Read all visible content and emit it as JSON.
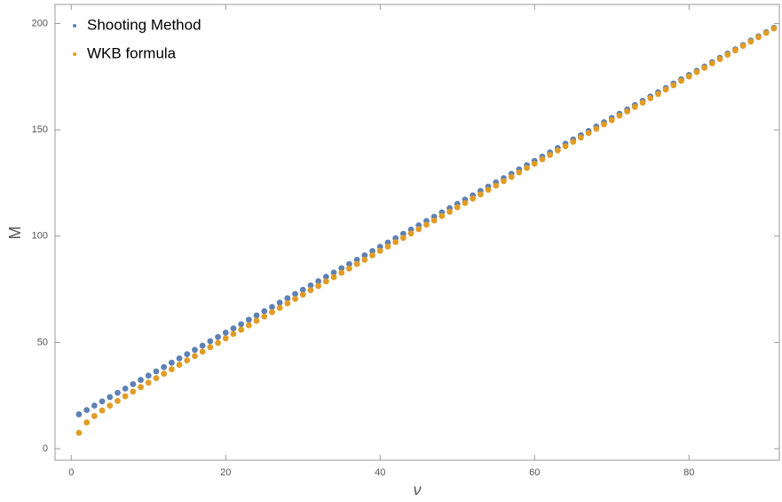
{
  "chart_data": {
    "type": "scatter",
    "x_label": "ν",
    "y_label": "M",
    "x": [
      1,
      2,
      3,
      4,
      5,
      6,
      7,
      8,
      9,
      10,
      11,
      12,
      13,
      14,
      15,
      16,
      17,
      18,
      19,
      20,
      21,
      22,
      23,
      24,
      25,
      26,
      27,
      28,
      29,
      30,
      31,
      32,
      33,
      34,
      35,
      36,
      37,
      38,
      39,
      40,
      41,
      42,
      43,
      44,
      45,
      46,
      47,
      48,
      49,
      50,
      51,
      52,
      53,
      54,
      55,
      56,
      57,
      58,
      59,
      60,
      61,
      62,
      63,
      64,
      65,
      66,
      67,
      68,
      69,
      70,
      71,
      72,
      73,
      74,
      75,
      76,
      77,
      78,
      79,
      80,
      81,
      82,
      83,
      84,
      85,
      86,
      87,
      88,
      89,
      90,
      91
    ],
    "series": [
      {
        "name": "Shooting Method",
        "color": "#5e81b5",
        "values": [
          16.2,
          18.2,
          20.3,
          22.3,
          24.3,
          26.3,
          28.3,
          30.4,
          32.4,
          34.4,
          36.4,
          38.4,
          40.5,
          42.5,
          44.5,
          46.5,
          48.5,
          50.6,
          52.6,
          54.6,
          56.6,
          58.6,
          60.7,
          62.7,
          64.7,
          66.7,
          68.7,
          70.8,
          72.8,
          74.8,
          76.8,
          78.8,
          80.9,
          82.9,
          84.9,
          86.9,
          88.9,
          91.0,
          93.0,
          95.0,
          97.0,
          99.0,
          101.1,
          103.1,
          105.1,
          107.1,
          109.1,
          111.2,
          113.2,
          115.2,
          117.2,
          119.2,
          121.3,
          123.3,
          125.3,
          127.3,
          129.3,
          131.4,
          133.4,
          135.4,
          137.4,
          139.4,
          141.5,
          143.5,
          145.5,
          147.5,
          149.5,
          151.6,
          153.6,
          155.6,
          157.6,
          159.6,
          161.7,
          163.7,
          165.7,
          167.7,
          169.7,
          171.8,
          173.8,
          175.8,
          177.8,
          179.8,
          181.9,
          183.9,
          185.9,
          187.9,
          189.9,
          192.0,
          194.0,
          196.0,
          198.0
        ]
      },
      {
        "name": "WKB formula",
        "color": "#e19c24",
        "values": [
          7.5,
          12.4,
          15.4,
          18.0,
          20.3,
          22.5,
          24.7,
          26.9,
          29.0,
          31.1,
          33.2,
          35.3,
          37.4,
          39.5,
          41.6,
          43.6,
          45.7,
          47.8,
          49.8,
          51.9,
          54.0,
          56.0,
          58.1,
          60.2,
          62.2,
          64.3,
          66.3,
          68.4,
          70.5,
          72.5,
          74.6,
          76.6,
          78.7,
          80.7,
          82.8,
          84.8,
          86.9,
          88.9,
          91.0,
          93.1,
          95.1,
          97.2,
          99.2,
          101.3,
          103.3,
          105.4,
          107.4,
          109.5,
          111.5,
          113.6,
          115.6,
          117.7,
          119.7,
          121.8,
          123.8,
          125.9,
          127.9,
          130.0,
          132.1,
          134.1,
          136.2,
          138.2,
          140.3,
          142.3,
          144.4,
          146.4,
          148.5,
          150.5,
          152.6,
          154.6,
          156.7,
          158.7,
          160.8,
          162.8,
          164.9,
          166.9,
          169.0,
          171.0,
          173.1,
          175.1,
          177.2,
          179.2,
          181.3,
          183.3,
          185.4,
          187.4,
          189.5,
          191.5,
          193.6,
          195.6,
          197.7
        ]
      }
    ],
    "xlim": [
      -2.1,
      91.7
    ],
    "ylim": [
      -5.4,
      209
    ],
    "xticks": [
      0,
      20,
      40,
      60,
      80
    ],
    "yticks": [
      0,
      50,
      100,
      150,
      200
    ],
    "grid": false,
    "legend": "upper left"
  }
}
